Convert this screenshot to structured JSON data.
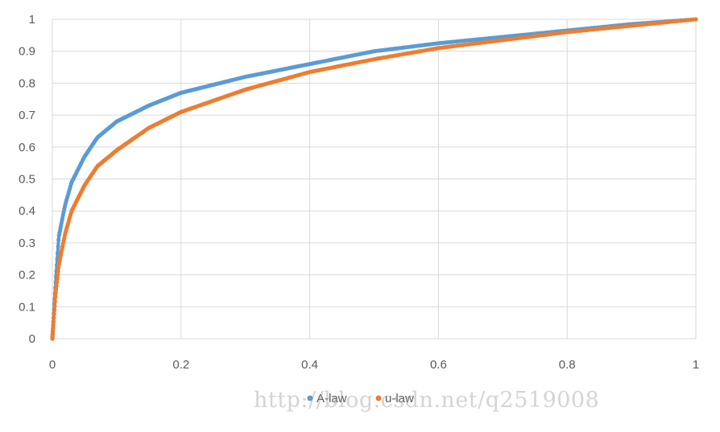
{
  "chart_data": {
    "type": "scatter",
    "title": "",
    "xlabel": "",
    "ylabel": "",
    "xlim": [
      0,
      1
    ],
    "ylim": [
      0,
      1
    ],
    "x_ticks": [
      "0",
      "0.2",
      "0.4",
      "0.6",
      "0.8",
      "1"
    ],
    "y_ticks": [
      "0",
      "0.1",
      "0.2",
      "0.3",
      "0.4",
      "0.5",
      "0.6",
      "0.7",
      "0.8",
      "0.9",
      "1"
    ],
    "grid": true,
    "legend_position": "bottom",
    "series": [
      {
        "name": "A-law",
        "color": "#5b9bd5",
        "x": [
          0,
          0.005,
          0.01,
          0.02,
          0.03,
          0.05,
          0.07,
          0.1,
          0.15,
          0.2,
          0.3,
          0.4,
          0.5,
          0.6,
          0.7,
          0.8,
          0.9,
          1.0
        ],
        "y": [
          0,
          0.17,
          0.32,
          0.42,
          0.49,
          0.57,
          0.63,
          0.68,
          0.73,
          0.77,
          0.82,
          0.86,
          0.9,
          0.925,
          0.945,
          0.965,
          0.985,
          1.0
        ]
      },
      {
        "name": "u-law",
        "color": "#ed7d31",
        "x": [
          0,
          0.005,
          0.01,
          0.02,
          0.03,
          0.05,
          0.07,
          0.1,
          0.15,
          0.2,
          0.3,
          0.4,
          0.5,
          0.6,
          0.7,
          0.8,
          0.9,
          1.0
        ],
        "y": [
          0,
          0.14,
          0.23,
          0.33,
          0.4,
          0.48,
          0.54,
          0.59,
          0.66,
          0.71,
          0.78,
          0.835,
          0.875,
          0.91,
          0.935,
          0.96,
          0.98,
          1.0
        ]
      }
    ]
  },
  "watermark": "http://blog.csdn.net/q2519008"
}
